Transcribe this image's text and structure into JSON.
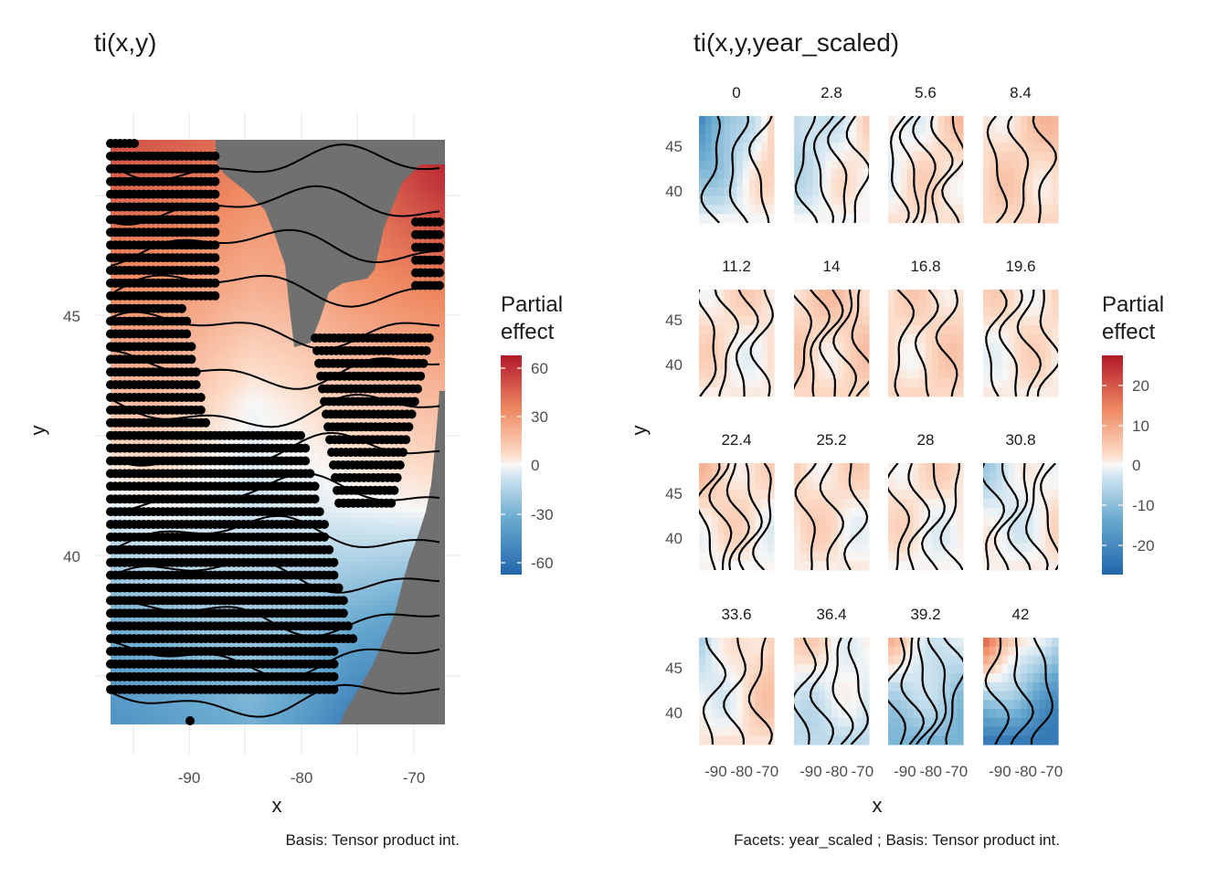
{
  "chart_data": [
    {
      "type": "heatmap",
      "title": "ti(x,y)",
      "caption": "Basis: Tensor product int.",
      "xlabel": "x",
      "ylabel": "y",
      "x_ticks": [
        "-90",
        "-80",
        "-70"
      ],
      "x_tick_values": [
        -90,
        -80,
        -70
      ],
      "y_ticks": [
        "40",
        "45"
      ],
      "y_tick_values": [
        40,
        45
      ],
      "xlim": [
        -96.5,
        -67.5
      ],
      "ylim": [
        36.4,
        48.4
      ],
      "grid": true,
      "colorbar": {
        "title": [
          "Partial",
          "effect"
        ],
        "labels": [
          "60",
          "30",
          "0",
          "-30",
          "-60"
        ],
        "values": [
          60,
          30,
          0,
          -30,
          -60
        ],
        "range": [
          -66,
          66
        ]
      },
      "surface": {
        "x": [
          -96,
          -92,
          -88,
          -84,
          -80,
          -76,
          -72,
          -68
        ],
        "y": [
          37,
          39,
          41,
          43,
          45,
          47,
          48
        ],
        "z": [
          [
            -45,
            -40,
            -35,
            -30,
            -40,
            -55,
            -62,
            -66
          ],
          [
            -30,
            -25,
            -20,
            -18,
            -22,
            -30,
            -36,
            -40
          ],
          [
            -5,
            0,
            -3,
            -8,
            -5,
            -2,
            0,
            2
          ],
          [
            15,
            18,
            10,
            0,
            5,
            12,
            15,
            18
          ],
          [
            32,
            30,
            25,
            20,
            22,
            28,
            32,
            35
          ],
          [
            45,
            42,
            38,
            32,
            34,
            40,
            50,
            60
          ],
          [
            52,
            48,
            44,
            40,
            42,
            48,
            58,
            66
          ]
        ]
      },
      "observation_points": true
    },
    {
      "type": "heatmap",
      "title": "ti(x,y,year_scaled)",
      "caption": "Facets: year_scaled ; Basis: Tensor product int.",
      "xlabel": "x",
      "ylabel": "y",
      "facet_variable": "year_scaled",
      "facets": [
        "0",
        "2.8",
        "5.6",
        "8.4",
        "11.2",
        "14",
        "16.8",
        "19.6",
        "22.4",
        "25.2",
        "28",
        "30.8",
        "33.6",
        "36.4",
        "39.2",
        "42"
      ],
      "x_ticks": [
        "-90",
        "-80",
        "-70"
      ],
      "x_tick_values": [
        -90,
        -80,
        -70
      ],
      "y_ticks": [
        "40",
        "45"
      ],
      "y_tick_values": [
        40,
        45
      ],
      "xlim": [
        -96.5,
        -67.5
      ],
      "ylim": [
        36.4,
        48.4
      ],
      "colorbar": {
        "title": [
          "Partial",
          "effect"
        ],
        "labels": [
          "20",
          "10",
          "0",
          "-10",
          "-20"
        ],
        "values": [
          20,
          10,
          0,
          -10,
          -20
        ],
        "range": [
          -27,
          27
        ]
      },
      "facet_tone": [
        [
          -22,
          6,
          0
        ],
        [
          -8,
          4,
          0
        ],
        [
          -2,
          5,
          2
        ],
        [
          2,
          6,
          3
        ],
        [
          3,
          2,
          1
        ],
        [
          4,
          5,
          3
        ],
        [
          2,
          4,
          3
        ],
        [
          2,
          3,
          1
        ],
        [
          6,
          2,
          0
        ],
        [
          4,
          2,
          1
        ],
        [
          3,
          2,
          0
        ],
        [
          -6,
          2,
          1
        ],
        [
          -6,
          7,
          2
        ],
        [
          3,
          1,
          -5
        ],
        [
          6,
          -4,
          -12
        ],
        [
          18,
          -8,
          -24
        ]
      ]
    }
  ],
  "colors": {
    "neg": "#2166ac",
    "neg_mid": "#67a9cf",
    "neg_light": "#d1e5f0",
    "zero": "#f7f7f7",
    "pos_light": "#fddbc7",
    "pos_mid": "#ef8a62",
    "pos": "#b2182b",
    "na": "#707070",
    "grid": "#ebebeb",
    "axis_text": "#4d4d4d"
  }
}
